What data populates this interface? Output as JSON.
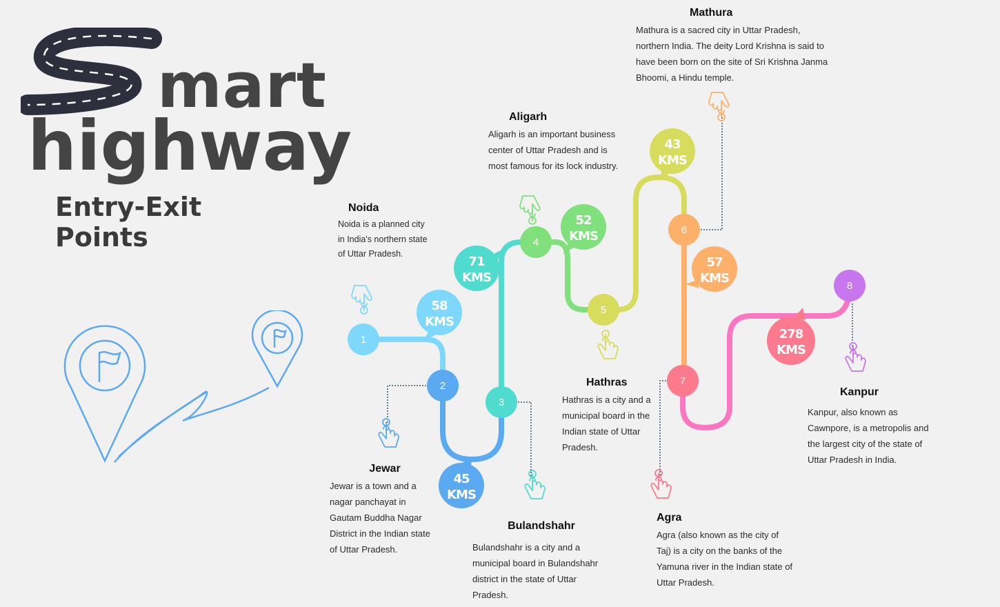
{
  "logo": {
    "word1": "mart",
    "word2": "highway"
  },
  "subtitle": "Entry-Exit Points",
  "colors": {
    "c1": "#7dd8fb",
    "c2": "#5aa9f1",
    "c3": "#4fdbcd",
    "c4": "#7fe07c",
    "c5": "#d7dc5c",
    "c6": "#fdb06a",
    "c7": "#fc7a8e",
    "c8": "#c776ee",
    "route_1_2": "#7dd8fb",
    "route_2_3": "#5aa9f1",
    "route_3_4": "#4fdbcd",
    "route_4_5": "#7fe07c",
    "route_5_6": "#d7dc5c",
    "route_6_7": "#fdb06a",
    "route_7_8": "#fa76c0"
  },
  "nodes": [
    {
      "label": "1",
      "color": "#7dd8fb"
    },
    {
      "label": "2",
      "color": "#5aa9f1"
    },
    {
      "label": "3",
      "color": "#4fdbcd"
    },
    {
      "label": "4",
      "color": "#7fe07c"
    },
    {
      "label": "5",
      "color": "#d7dc5c"
    },
    {
      "label": "6",
      "color": "#fdb06a"
    },
    {
      "label": "7",
      "color": "#fc7a8e"
    },
    {
      "label": "8",
      "color": "#c776ee"
    }
  ],
  "distances": [
    {
      "value": "58",
      "unit": "KMS",
      "color": "#7dd8fb"
    },
    {
      "value": "45",
      "unit": "KMS",
      "color": "#5aa9f1"
    },
    {
      "value": "71",
      "unit": "KMS",
      "color": "#4fdbcd"
    },
    {
      "value": "52",
      "unit": "KMS",
      "color": "#7fe07c"
    },
    {
      "value": "43",
      "unit": "KMS",
      "color": "#d7dc5c"
    },
    {
      "value": "57",
      "unit": "KMS",
      "color": "#fdb06a"
    },
    {
      "value": "278",
      "unit": "KMS",
      "color": "#fc7a8e"
    }
  ],
  "cities": [
    {
      "name": "Noida",
      "text": "Noida is a planned city in India's northern state of Uttar Pradesh.",
      "icon": "hand-pointer-icon"
    },
    {
      "name": "Jewar",
      "text": "Jewar is a town and a nagar panchayat in Gautam Buddha Nagar District in the Indian state of Uttar Pradesh.",
      "icon": "hand-pointer-icon"
    },
    {
      "name": "Bulandshahr",
      "text": "Bulandshahr is a city and a municipal board in Bulandshahr district in the state of Uttar Pradesh.",
      "icon": "hand-pointer-icon"
    },
    {
      "name": "Aligarh",
      "text": "Aligarh is an important business center of Uttar Pradesh and is most famous for its lock industry.",
      "icon": "hand-pointer-icon"
    },
    {
      "name": "Hathras",
      "text": "Hathras is a city and a municipal board in the Indian state of Uttar Pradesh.",
      "icon": "hand-pointer-icon"
    },
    {
      "name": "Mathura",
      "text": "Mathura is a sacred city in Uttar Pradesh, northern India. The deity Lord Krishna is said to have been born on the site of Sri Krishna Janma Bhoomi, a Hindu temple.",
      "icon": "hand-pointer-icon"
    },
    {
      "name": "Agra",
      "text": "Agra (also known as the city of Taj) is a city on the banks of the Yamuna river in the Indian state of Uttar Pradesh.",
      "icon": "hand-pointer-icon"
    },
    {
      "name": "Kanpur",
      "text": "Kanpur, also known as Cawnpore, is a metropolis and the largest city of the state of Uttar Pradesh in India.",
      "icon": "hand-pointer-icon"
    }
  ],
  "illustration": {
    "icon": "map-pin-flag-icon"
  }
}
